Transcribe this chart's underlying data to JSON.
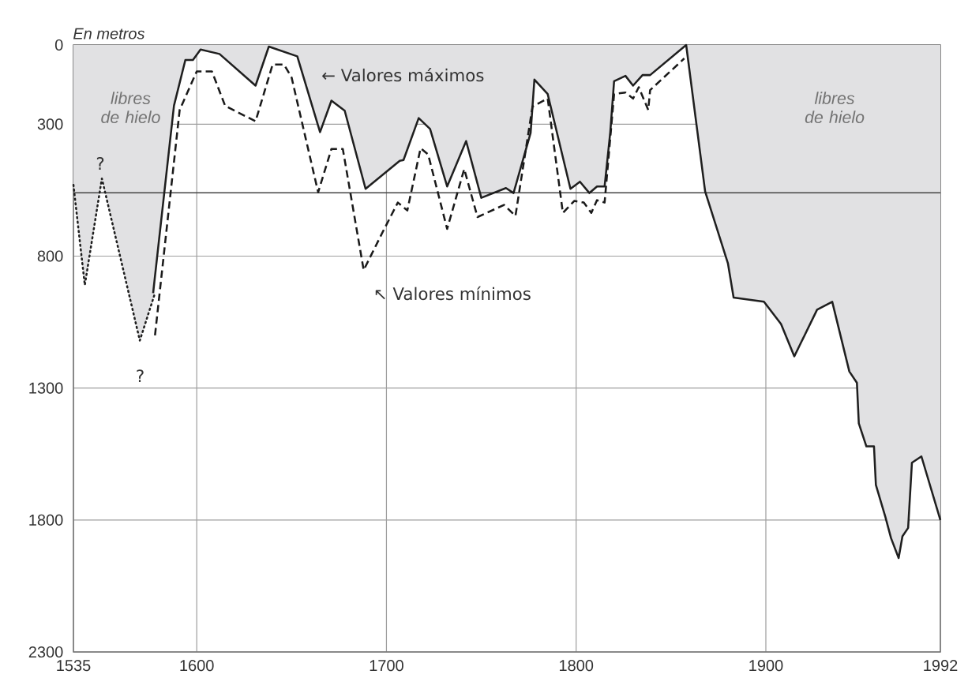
{
  "chart_data": {
    "type": "line",
    "ylabel": "En metros",
    "xlim": [
      1535,
      1992
    ],
    "xticks": [
      1535,
      1600,
      1700,
      1800,
      1900,
      1992
    ],
    "ylim": [
      2300,
      0
    ],
    "yticks": [
      0,
      300,
      800,
      1300,
      1800,
      2300
    ],
    "grid": true,
    "ref_lines": [
      {
        "axis": "y",
        "value": 560,
        "color": "#444444"
      }
    ],
    "series": [
      {
        "type": "area",
        "line_style": "dotted",
        "color": "#e1e1e3",
        "x": [
          1535,
          1541,
          1550,
          1570,
          1578
        ],
        "values": [
          530,
          910,
          506,
          1120,
          940
        ]
      },
      {
        "type": "area",
        "line_style": "solid",
        "color": "#e1e1e3",
        "x": [
          1577,
          1588,
          1594,
          1598,
          1602,
          1612,
          1631,
          1638,
          1653,
          1665,
          1671,
          1678,
          1689,
          1707,
          1709,
          1717,
          1723,
          1732,
          1742,
          1750,
          1763,
          1767,
          1776,
          1778,
          1785,
          1797,
          1802,
          1807,
          1811,
          1815,
          1818,
          1820,
          1826,
          1830,
          1835,
          1839,
          1858,
          1868,
          1880,
          1883,
          1899,
          1908,
          1915,
          1927,
          1935,
          1944,
          1948,
          1949,
          1953,
          1957,
          1958,
          1963,
          1966,
          1970,
          1972,
          1975,
          1977,
          1982,
          1992
        ],
        "values": [
          940,
          230,
          57,
          57,
          17,
          34,
          154,
          6,
          43,
          330,
          211,
          249,
          545,
          439,
          436,
          277,
          318,
          536,
          364,
          579,
          542,
          561,
          333,
          131,
          186,
          545,
          518,
          561,
          536,
          536,
          330,
          137,
          117,
          154,
          114,
          114,
          0,
          555,
          827,
          957,
          973,
          1057,
          1180,
          1003,
          973,
          1237,
          1280,
          1434,
          1521,
          1521,
          1667,
          1788,
          1869,
          1944,
          1862,
          1830,
          1583,
          1559,
          1800
        ]
      },
      {
        "line_style": "dashed",
        "color": "#1a1a1a",
        "x": [
          1578,
          1591,
          1600,
          1608,
          1615,
          1631,
          1640,
          1646,
          1650,
          1664,
          1671,
          1677,
          1688,
          1698,
          1706,
          1711,
          1718,
          1722,
          1732,
          1741,
          1748,
          1762,
          1768,
          1777,
          1785,
          1793,
          1799,
          1804,
          1808,
          1811,
          1815,
          1820,
          1826,
          1830,
          1833,
          1838,
          1839,
          1857
        ],
        "values": [
          1100,
          246,
          100,
          100,
          231,
          289,
          74,
          74,
          123,
          558,
          394,
          394,
          853,
          709,
          597,
          627,
          391,
          415,
          697,
          470,
          652,
          606,
          648,
          233,
          203,
          636,
          591,
          597,
          636,
          588,
          597,
          186,
          180,
          203,
          160,
          246,
          171,
          51
        ]
      }
    ],
    "annotations": [
      "libres de hielo",
      "?",
      "?",
      "← Valores máximos",
      "↖ Valores mínimos",
      "libres de hielo"
    ]
  }
}
